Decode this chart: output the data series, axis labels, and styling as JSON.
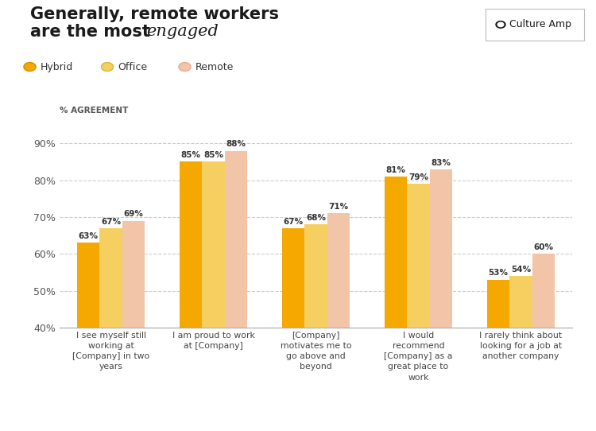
{
  "title_bold": "Generally, remote workers\nare the most ",
  "title_italic": "engaged",
  "categories": [
    "I see myself still\nworking at\n[Company] in two\nyears",
    "I am proud to work\nat [Company]",
    "[Company]\nmotivates me to\ngo above and\nbeyond",
    "I would\nrecommend\n[Company] as a\ngreat place to\nwork",
    "I rarely think about\nlooking for a job at\nanother company"
  ],
  "series": {
    "Hybrid": [
      63,
      85,
      67,
      81,
      53
    ],
    "Office": [
      67,
      85,
      68,
      79,
      54
    ],
    "Remote": [
      69,
      88,
      71,
      83,
      60
    ]
  },
  "colors": {
    "Hybrid": "#F5A800",
    "Office": "#F5D060",
    "Remote": "#F2C4A8"
  },
  "ylabel": "% AGREEMENT",
  "ylim": [
    40,
    95
  ],
  "yticks": [
    40,
    50,
    60,
    70,
    80,
    90
  ],
  "ytick_labels": [
    "40%",
    "50%",
    "60%",
    "70%",
    "80%",
    "90%"
  ],
  "grid_color": "#CCCCCC",
  "background_color": "#FFFFFF",
  "bar_label_fontsize": 7.5,
  "legend_labels": [
    "Hybrid",
    "Office",
    "Remote"
  ],
  "logo_text": "Culture Amp"
}
